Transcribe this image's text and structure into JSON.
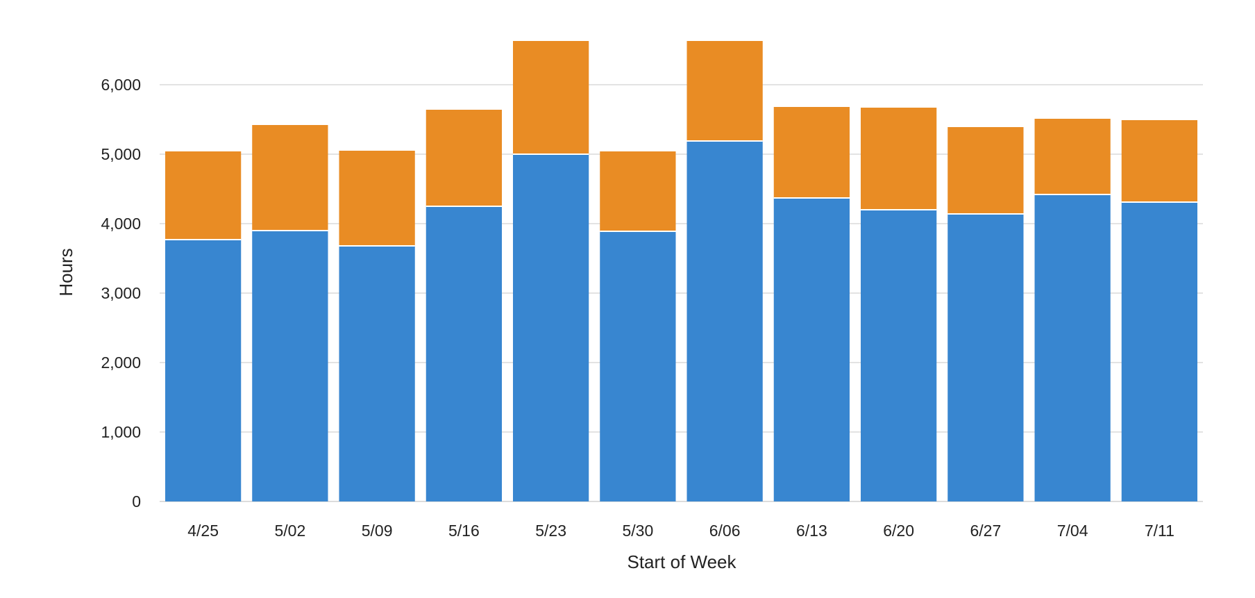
{
  "chart_data": {
    "type": "bar",
    "stacked": true,
    "title": "",
    "xlabel": "Start of Week",
    "ylabel": "Hours",
    "ylim": [
      0,
      6650
    ],
    "yticks": [
      0,
      1000,
      2000,
      3000,
      4000,
      5000,
      6000
    ],
    "ytick_labels": [
      "0",
      "1,000",
      "2,000",
      "3,000",
      "4,000",
      "5,000",
      "6,000"
    ],
    "grid": true,
    "legend": "none",
    "categories": [
      "4/25",
      "5/02",
      "5/09",
      "5/16",
      "5/23",
      "5/30",
      "6/06",
      "6/13",
      "6/20",
      "6/27",
      "7/04",
      "7/11"
    ],
    "series": [
      {
        "color": "#3886d0",
        "values": [
          3770,
          3900,
          3680,
          4250,
          5000,
          3890,
          5190,
          4370,
          4200,
          4140,
          4420,
          4310
        ]
      },
      {
        "color": "#e98c24",
        "values": [
          1270,
          1520,
          1370,
          1390,
          1630,
          1150,
          1440,
          1310,
          1470,
          1250,
          1090,
          1180
        ]
      }
    ]
  }
}
